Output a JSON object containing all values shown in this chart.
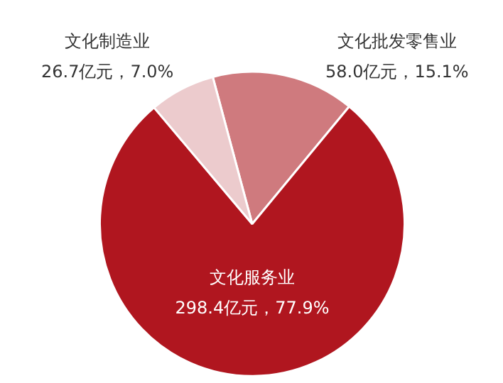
{
  "chart_data": {
    "type": "pie",
    "categories": [
      "文化批发零售业",
      "文化服务业",
      "文化制造业"
    ],
    "values": [
      58.0,
      298.4,
      26.7
    ],
    "colors": [
      "#cf7a7e",
      "#b0161f",
      "#eccbcd"
    ],
    "value_labels": [
      "58.0亿元，15.1%",
      "298.4亿元，77.9%",
      "26.7亿元，7.0%"
    ]
  }
}
